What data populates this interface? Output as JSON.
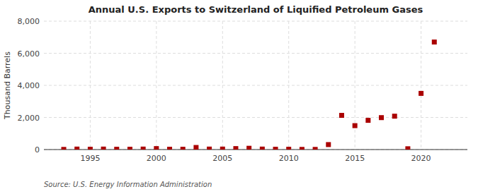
{
  "chart_data": {
    "type": "scatter",
    "title": "Annual U.S. Exports to Switzerland of Liquified Petroleum Gases",
    "ylabel": "Thousand Barrels",
    "annotations": [
      "Source: U.S. Energy Information Administration"
    ],
    "color": "#aa0000",
    "marker": "square",
    "grid": true,
    "xlim": [
      1991.5,
      2023.5
    ],
    "ylim": [
      0,
      8000
    ],
    "xticks": [
      1995,
      2000,
      2005,
      2010,
      2015,
      2020
    ],
    "yticks": [
      0,
      {
        "value": 2000,
        "label": "2,000"
      },
      {
        "value": 4000,
        "label": "4,000"
      },
      {
        "value": 6000,
        "label": "6,000"
      },
      {
        "value": 8000,
        "label": "8,000"
      }
    ],
    "x": [
      1993,
      1994,
      1995,
      1996,
      1997,
      1998,
      1999,
      2000,
      2001,
      2002,
      2003,
      2004,
      2005,
      2006,
      2007,
      2008,
      2009,
      2010,
      2011,
      2012,
      2013,
      2014,
      2015,
      2016,
      2017,
      2018,
      2019,
      2020,
      2021
    ],
    "values": [
      10,
      30,
      20,
      30,
      20,
      20,
      30,
      60,
      20,
      20,
      130,
      30,
      30,
      60,
      80,
      30,
      20,
      20,
      10,
      10,
      310,
      2130,
      1490,
      1820,
      1990,
      2080,
      50,
      3500,
      6700
    ]
  }
}
